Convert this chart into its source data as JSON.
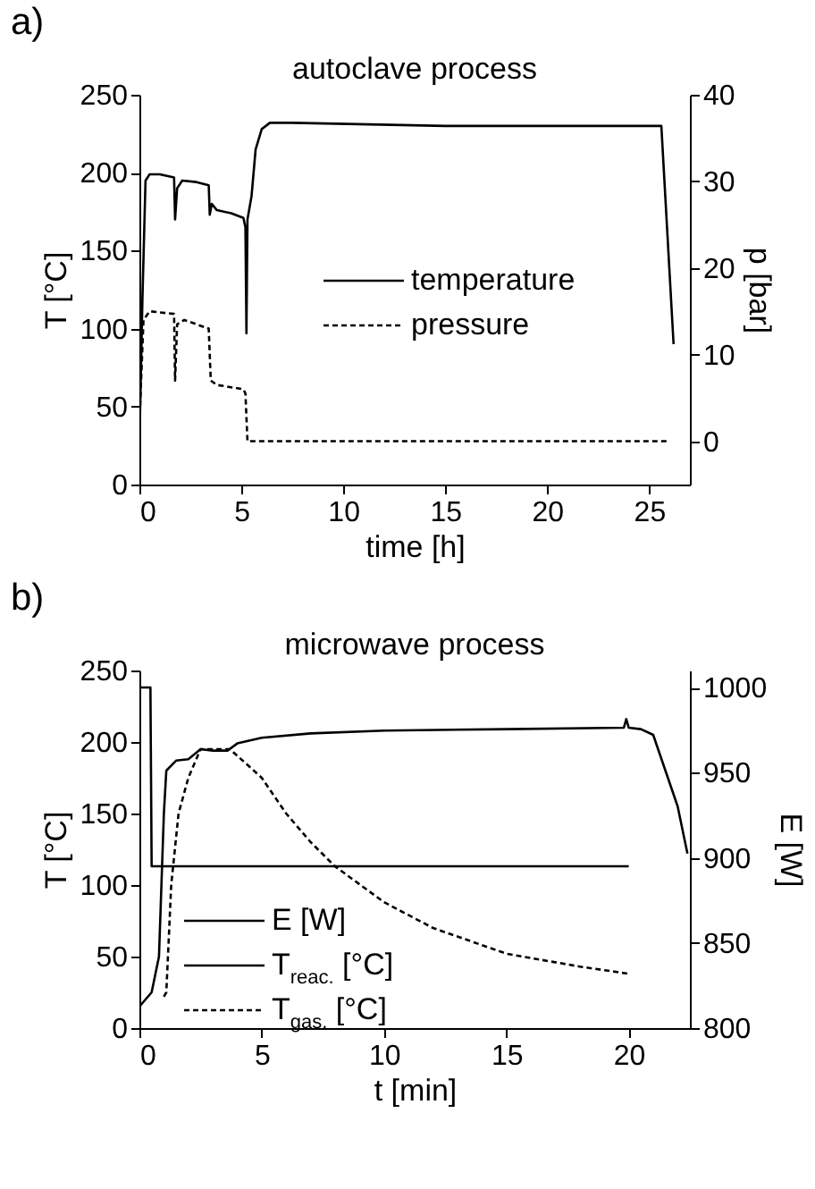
{
  "chart_data": [
    {
      "type": "line",
      "title": "autoclave process",
      "xlabel": "time [h]",
      "ylabel": "T [°C]",
      "y2label": "p [bar]",
      "annotations": [
        "a)"
      ],
      "xlim": [
        0,
        27
      ],
      "ylim": [
        0,
        250
      ],
      "y2lim": [
        -5,
        40
      ],
      "xticks": [
        0,
        5,
        10,
        15,
        20,
        25
      ],
      "yticks": [
        0,
        50,
        100,
        150,
        200,
        250
      ],
      "y2ticks": [
        0,
        10,
        20,
        30,
        40
      ],
      "legend": "center right",
      "grid": false,
      "series": [
        {
          "name": "temperature",
          "color": "#000000",
          "line_style": "solid",
          "x": [
            0,
            0.15,
            0.3,
            0.5,
            1,
            1.7,
            1.75,
            1.85,
            2.1,
            2.8,
            3.4,
            3.45,
            3.55,
            3.8,
            4.5,
            5.1,
            5.2,
            5.25,
            5.3,
            5.5,
            5.7,
            6,
            6.4,
            7.5,
            15,
            25.6,
            26.2
          ],
          "values": [
            25,
            120,
            195,
            199,
            199,
            197,
            170,
            190,
            195,
            194,
            192,
            173,
            180,
            176,
            174,
            171,
            165,
            97,
            170,
            185,
            215,
            228,
            232,
            232,
            230,
            230,
            90
          ]
        },
        {
          "name": "pressure",
          "color": "#000000",
          "line_style": "dashed",
          "axis": "y2",
          "x": [
            0,
            0.05,
            0.2,
            0.5,
            1.7,
            1.75,
            1.85,
            2.2,
            3.4,
            3.5,
            3.8,
            5.1,
            5.2,
            5.3,
            26
          ],
          "values": [
            2,
            5,
            14,
            15,
            14.7,
            7,
            13.5,
            14,
            13,
            7,
            6.5,
            6,
            5.5,
            0,
            0
          ]
        }
      ]
    },
    {
      "type": "line",
      "title": "microwave process",
      "xlabel": "t [min]",
      "ylabel": "T [°C]",
      "y2label": "E [W]",
      "annotations": [
        "b)"
      ],
      "xlim": [
        0,
        22.5
      ],
      "ylim": [
        0,
        250
      ],
      "y2lim": [
        800,
        1010
      ],
      "xticks": [
        0,
        5,
        10,
        15,
        20
      ],
      "yticks": [
        0,
        50,
        100,
        150,
        200,
        250
      ],
      "y2ticks": [
        800,
        850,
        900,
        950,
        1000
      ],
      "legend": "bottom left",
      "grid": false,
      "series": [
        {
          "name": "E [W]",
          "color": "#000000",
          "line_style": "solid",
          "axis": "y2",
          "x": [
            0,
            0.45,
            0.5,
            20
          ],
          "values": [
            1000,
            1000,
            895,
            895
          ]
        },
        {
          "name": "T$_{reac.}$ [°C]",
          "color": "#000000",
          "line_style": "solid",
          "x": [
            0,
            0.5,
            0.8,
            1,
            1.1,
            1.5,
            2,
            2.5,
            3,
            3.6,
            4,
            5,
            7,
            10,
            15,
            19.8,
            19.9,
            20,
            20.5,
            21,
            21.5,
            22,
            22.4
          ],
          "values": [
            15,
            25,
            50,
            150,
            180,
            187,
            188,
            195,
            194,
            194,
            199,
            203,
            206,
            208,
            209,
            210,
            216,
            210,
            209,
            205,
            180,
            155,
            122
          ]
        },
        {
          "name": "T$_{gas.}$ [°C]",
          "color": "#000000",
          "line_style": "dashed",
          "x": [
            1,
            1.1,
            1.3,
            1.6,
            2,
            2.5,
            3.7,
            5,
            6,
            7,
            8,
            10,
            12,
            15,
            18,
            20
          ],
          "values": [
            22,
            25,
            100,
            150,
            175,
            195,
            195,
            175,
            150,
            130,
            113,
            88,
            70,
            52,
            43,
            38
          ]
        }
      ]
    }
  ]
}
